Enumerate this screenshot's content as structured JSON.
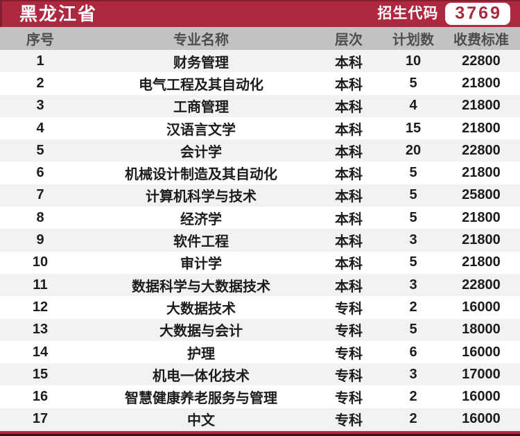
{
  "header": {
    "province": "黑龙江省",
    "code_label": "招生代码",
    "code_value": "3769"
  },
  "table": {
    "columns": [
      "序号",
      "专业名称",
      "层次",
      "计划数",
      "收费标准"
    ],
    "rows": [
      {
        "no": "1",
        "major": "财务管理",
        "level": "本科",
        "plan": "10",
        "fee": "22800"
      },
      {
        "no": "2",
        "major": "电气工程及其自动化",
        "level": "本科",
        "plan": "5",
        "fee": "21800"
      },
      {
        "no": "3",
        "major": "工商管理",
        "level": "本科",
        "plan": "4",
        "fee": "21800"
      },
      {
        "no": "4",
        "major": "汉语言文学",
        "level": "本科",
        "plan": "15",
        "fee": "21800"
      },
      {
        "no": "5",
        "major": "会计学",
        "level": "本科",
        "plan": "20",
        "fee": "22800"
      },
      {
        "no": "6",
        "major": "机械设计制造及其自动化",
        "level": "本科",
        "plan": "5",
        "fee": "21800"
      },
      {
        "no": "7",
        "major": "计算机科学与技术",
        "level": "本科",
        "plan": "5",
        "fee": "25800"
      },
      {
        "no": "8",
        "major": "经济学",
        "level": "本科",
        "plan": "5",
        "fee": "21800"
      },
      {
        "no": "9",
        "major": "软件工程",
        "level": "本科",
        "plan": "3",
        "fee": "21800"
      },
      {
        "no": "10",
        "major": "审计学",
        "level": "本科",
        "plan": "5",
        "fee": "21800"
      },
      {
        "no": "11",
        "major": "数据科学与大数据技术",
        "level": "本科",
        "plan": "3",
        "fee": "22800"
      },
      {
        "no": "12",
        "major": "大数据技术",
        "level": "专科",
        "plan": "2",
        "fee": "16000"
      },
      {
        "no": "13",
        "major": "大数据与会计",
        "level": "专科",
        "plan": "5",
        "fee": "18000"
      },
      {
        "no": "14",
        "major": "护理",
        "level": "专科",
        "plan": "6",
        "fee": "16000"
      },
      {
        "no": "15",
        "major": "机电一体化技术",
        "level": "专科",
        "plan": "3",
        "fee": "17000"
      },
      {
        "no": "16",
        "major": "智慧健康养老服务与管理",
        "level": "专科",
        "plan": "2",
        "fee": "16000"
      },
      {
        "no": "17",
        "major": "中文",
        "level": "专科",
        "plan": "2",
        "fee": "16000"
      }
    ]
  },
  "colors": {
    "primary_red": "#AC2940",
    "badge_text_red": "#A52A40",
    "column_header_bg": "#C2C2C2",
    "column_header_text": "#4D4D4D",
    "row_alt_bg": "#F2F2F2",
    "row_text": "#1C1C1C",
    "footer_dark": "#3B0F1B"
  }
}
